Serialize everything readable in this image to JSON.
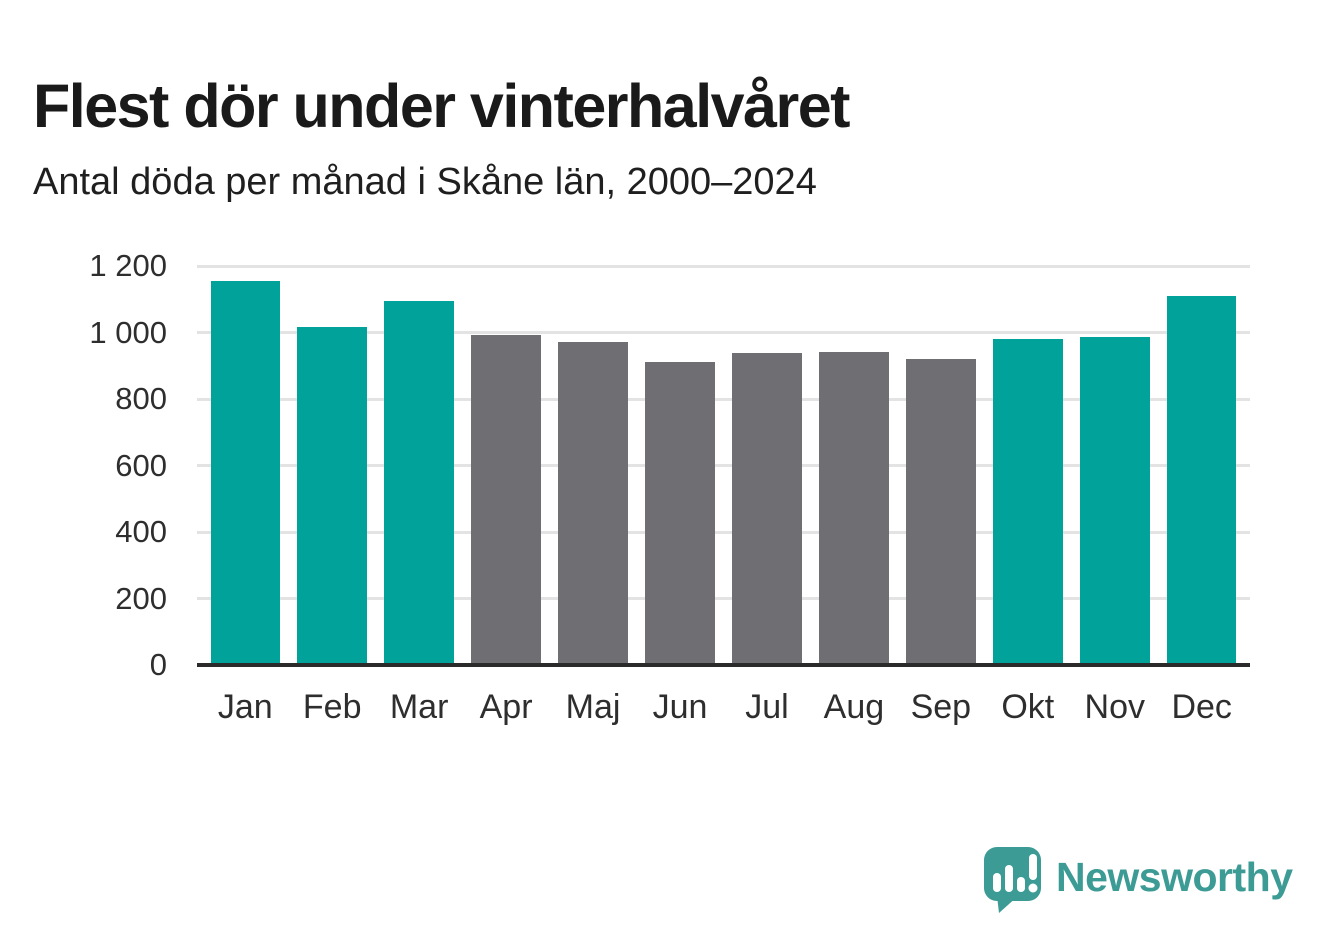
{
  "header": {
    "title": "Flest dör under vinterhalvåret",
    "subtitle": "Antal döda per månad i Skåne län, 2000–2024"
  },
  "chart_data": {
    "type": "bar",
    "title": "Flest dör under vinterhalvåret",
    "subtitle": "Antal döda per månad i Skåne län, 2000–2024",
    "categories": [
      "Jan",
      "Feb",
      "Mar",
      "Apr",
      "Maj",
      "Jun",
      "Jul",
      "Aug",
      "Sep",
      "Okt",
      "Nov",
      "Dec"
    ],
    "values": [
      1155,
      1018,
      1095,
      993,
      972,
      912,
      938,
      941,
      920,
      981,
      986,
      1111
    ],
    "bar_colors": [
      "#00A29A",
      "#00A29A",
      "#00A29A",
      "#6F6E73",
      "#6F6E73",
      "#6F6E73",
      "#6F6E73",
      "#6F6E73",
      "#6F6E73",
      "#00A29A",
      "#00A29A",
      "#00A29A"
    ],
    "highlighted_categories": [
      "Jan",
      "Feb",
      "Mar",
      "Okt",
      "Nov",
      "Dec"
    ],
    "xlabel": "",
    "ylabel": "",
    "ylim": [
      0,
      1200
    ],
    "yticks": [
      0,
      200,
      400,
      600,
      800,
      1000,
      1200
    ],
    "ytick_labels": [
      "0",
      "200",
      "400",
      "600",
      "800",
      "1 000",
      "1 200"
    ],
    "grid": "horizontal",
    "legend": "none"
  },
  "colors": {
    "highlight": "#00A29A",
    "muted": "#6F6E73",
    "gridline": "#E3E3E3",
    "axis_line": "#2B2B2B",
    "title_text": "#1A1A1A",
    "tick_text": "#2E2E2E",
    "brand": "#3D9B95"
  },
  "footer": {
    "brand": "Newsworthy"
  }
}
